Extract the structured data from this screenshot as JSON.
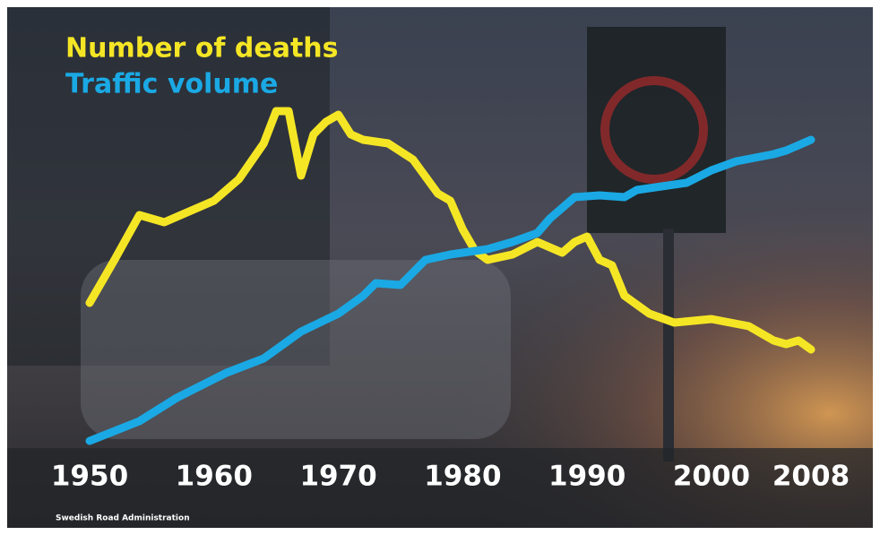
{
  "chart_data": {
    "type": "line",
    "source": "Swedish Road Administration",
    "xlim": [
      1950,
      2008
    ],
    "xticks": [
      1950,
      1960,
      1970,
      1980,
      1990,
      2000,
      2008
    ],
    "ylim": [
      0,
      100
    ],
    "series": [
      {
        "name": "Number of deaths",
        "color": "#f5e625",
        "x": [
          1950,
          1952,
          1954,
          1956,
          1958,
          1960,
          1962,
          1964,
          1965,
          1966,
          1967,
          1968,
          1969,
          1970,
          1971,
          1972,
          1974,
          1976,
          1978,
          1979,
          1980,
          1981,
          1982,
          1984,
          1986,
          1988,
          1989,
          1990,
          1991,
          1992,
          1993,
          1995,
          1997,
          2000,
          2003,
          2005,
          2006,
          2007,
          2008
        ],
        "values": [
          45.5,
          57.5,
          70,
          68,
          71,
          74,
          80,
          90,
          99,
          99,
          81,
          92.5,
          96,
          98,
          92.5,
          91,
          90,
          85.5,
          76,
          74,
          66,
          60,
          57.5,
          59,
          62.5,
          59.5,
          62.5,
          64,
          57.5,
          56,
          47.5,
          42.5,
          40,
          41,
          39,
          35,
          34,
          35,
          32.5
        ]
      },
      {
        "name": "Traffic volume",
        "color": "#1aa9e4",
        "x": [
          1950,
          1954,
          1957,
          1961,
          1964,
          1967,
          1970,
          1972,
          1973,
          1975,
          1976,
          1977,
          1979,
          1982,
          1984,
          1986,
          1987,
          1989,
          1991,
          1993,
          1994,
          1998,
          2000,
          2002,
          2005,
          2006,
          2008
        ],
        "values": [
          7,
          12.5,
          19,
          26,
          30,
          37.5,
          42.5,
          47.5,
          51,
          50.5,
          54,
          57.5,
          59,
          60.5,
          62.5,
          65,
          69,
          75,
          75.5,
          75,
          77,
          79,
          82.5,
          85,
          87,
          88,
          91
        ]
      }
    ]
  }
}
